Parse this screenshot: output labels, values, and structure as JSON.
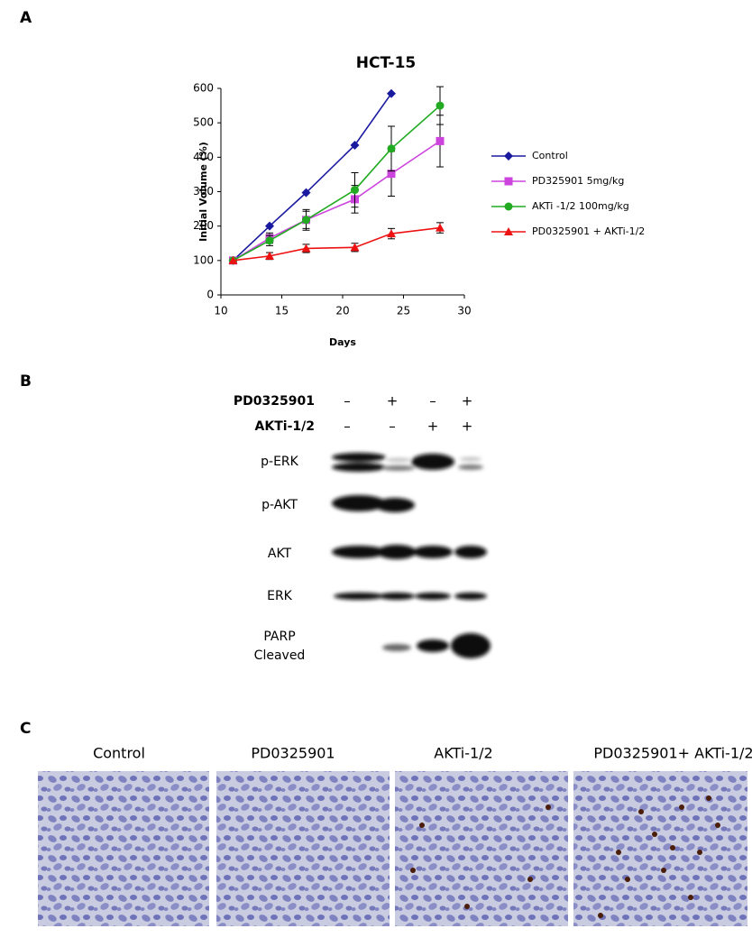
{
  "panels": {
    "a": "A",
    "b": "B",
    "c": "C"
  },
  "chart_data": {
    "type": "line",
    "title": "HCT-15",
    "x_label": "Days",
    "y_label": "Initial Volume (%)",
    "x": [
      11,
      14,
      17,
      21,
      24,
      28
    ],
    "xlim": [
      10,
      30
    ],
    "xticks": [
      10,
      15,
      20,
      25,
      30
    ],
    "ylim": [
      0,
      600
    ],
    "yticks": [
      0,
      100,
      200,
      300,
      400,
      500,
      600
    ],
    "legend": "right",
    "series": [
      {
        "name": "Control",
        "color": "#1a1aa0",
        "marker": "diamond",
        "values": [
          100,
          200,
          297,
          435,
          585,
          null
        ],
        "errors": [
          0,
          0,
          0,
          0,
          0,
          null
        ]
      },
      {
        "name": "PD325901 5mg/kg",
        "color": "#cc44dd",
        "marker": "square",
        "values": [
          100,
          165,
          218,
          278,
          352,
          447
        ],
        "errors": [
          0,
          15,
          30,
          40,
          65,
          75
        ]
      },
      {
        "name": "AKTi -1/2  100mg/kg",
        "color": "#22aa22",
        "marker": "circle",
        "values": [
          100,
          158,
          218,
          305,
          425,
          550
        ],
        "errors": [
          0,
          15,
          25,
          50,
          65,
          55
        ]
      },
      {
        "name": "PD0325901 + AKTi-1/2",
        "color": "#ee1111",
        "marker": "triangle",
        "values": [
          100,
          113,
          135,
          138,
          178,
          195
        ],
        "errors": [
          0,
          10,
          12,
          12,
          15,
          15
        ]
      }
    ]
  },
  "blot": {
    "treatments": [
      {
        "name": "PD0325901",
        "signs": [
          "–",
          "+",
          "–",
          "+"
        ]
      },
      {
        "name": "AKTi-1/2",
        "signs": [
          "–",
          "–",
          "+",
          "+"
        ]
      }
    ],
    "rows": [
      "p-ERK",
      "p-AKT",
      "AKT",
      "ERK",
      "PARP",
      "Cleaved"
    ]
  },
  "histology": {
    "captions": [
      "Control",
      "PD0325901",
      "AKTi-1/2",
      "PD0325901+ AKTi-1/2"
    ]
  }
}
